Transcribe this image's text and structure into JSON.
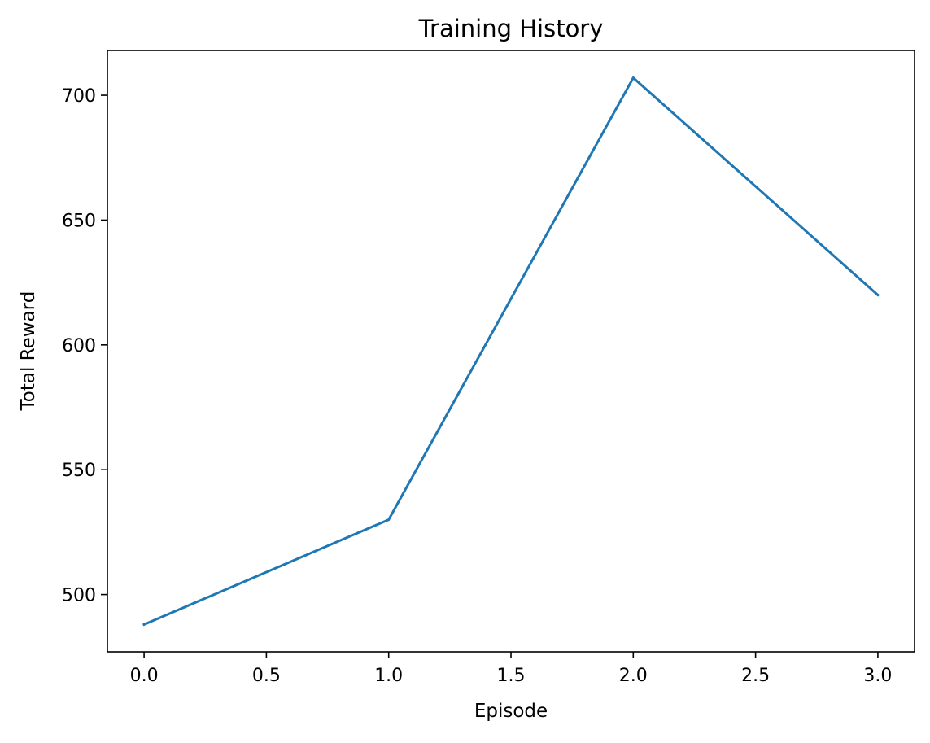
{
  "chart_data": {
    "type": "line",
    "title": "Training History",
    "xlabel": "Episode",
    "ylabel": "Total Reward",
    "x": [
      0,
      1,
      2,
      3
    ],
    "series": [
      {
        "values": [
          488,
          530,
          707,
          620
        ],
        "color": "#1f77b4"
      }
    ],
    "xlim": [
      -0.15,
      3.15
    ],
    "ylim": [
      477.05,
      717.95
    ],
    "xticks": [
      0.0,
      0.5,
      1.0,
      1.5,
      2.0,
      2.5,
      3.0
    ],
    "xtick_labels": [
      "0.0",
      "0.5",
      "1.0",
      "1.5",
      "2.0",
      "2.5",
      "3.0"
    ],
    "yticks": [
      500,
      550,
      600,
      650,
      700
    ],
    "ytick_labels": [
      "500",
      "550",
      "600",
      "650",
      "700"
    ],
    "grid": false,
    "legend": "none"
  }
}
